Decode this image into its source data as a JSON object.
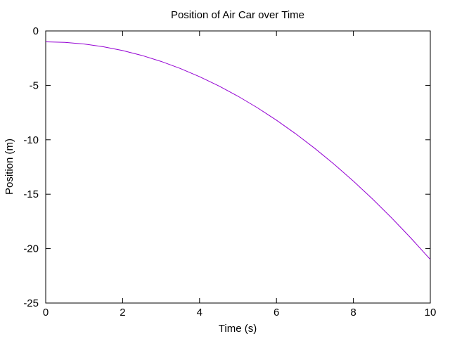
{
  "chart_data": {
    "type": "line",
    "title": "Position of Air Car over Time",
    "xlabel": "Time (s)",
    "ylabel": "Position (m)",
    "xlim": [
      0,
      10
    ],
    "ylim": [
      -25,
      0
    ],
    "xticks": [
      0,
      2,
      4,
      6,
      8,
      10
    ],
    "xtick_labels": [
      "0",
      "2",
      "4",
      "6",
      "8",
      "10"
    ],
    "yticks": [
      0,
      -5,
      -10,
      -15,
      -20,
      -25
    ],
    "ytick_labels": [
      "0",
      "-5",
      "-10",
      "-15",
      "-20",
      "-25"
    ],
    "grid": false,
    "legend": false,
    "series": [
      {
        "color": "#9400d3",
        "x": [
          0,
          0.5,
          1,
          1.5,
          2,
          2.5,
          3,
          3.5,
          4,
          4.5,
          5,
          5.5,
          6,
          6.5,
          7,
          7.5,
          8,
          8.5,
          9,
          9.5,
          10
        ],
        "y": [
          -1.0,
          -1.05,
          -1.2,
          -1.45,
          -1.8,
          -2.25,
          -2.8,
          -3.45,
          -4.2,
          -5.05,
          -6.0,
          -7.05,
          -8.2,
          -9.45,
          -10.8,
          -12.25,
          -13.8,
          -15.45,
          -17.2,
          -19.05,
          -21.0
        ]
      }
    ]
  }
}
